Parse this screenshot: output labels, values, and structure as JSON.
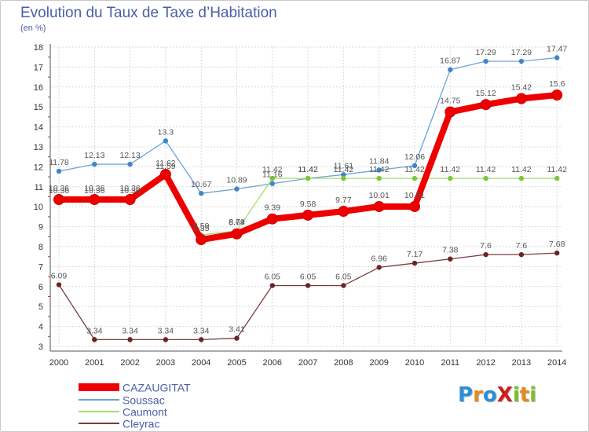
{
  "title": "Evolution du Taux de Taxe d’Habitation",
  "subtitle": "(en %)",
  "logo": {
    "text": "ProXiti",
    "letters": [
      {
        "ch": "P",
        "color": "#2c8fd6"
      },
      {
        "ch": "r",
        "color": "#e58a1f"
      },
      {
        "ch": "o",
        "color": "#2c8fd6"
      },
      {
        "ch": "X",
        "color": "#d11d1d"
      },
      {
        "ch": "i",
        "color": "#7cbf2a"
      },
      {
        "ch": "t",
        "color": "#e58a1f"
      },
      {
        "ch": "i",
        "color": "#7cbf2a"
      }
    ]
  },
  "chart_data": {
    "type": "line",
    "title": "Evolution du Taux de Taxe d’Habitation",
    "ylabel": "(en %)",
    "xlabel": "",
    "ylim": [
      3,
      18
    ],
    "yticks": [
      3,
      4,
      5,
      6,
      7,
      8,
      9,
      10,
      11,
      12,
      13,
      14,
      15,
      16,
      17,
      18
    ],
    "x": [
      "2000",
      "2001",
      "2002",
      "2003",
      "2004",
      "2005",
      "2006",
      "2007",
      "2008",
      "2009",
      "2010",
      "2011",
      "2012",
      "2013",
      "2014"
    ],
    "grid": "both",
    "legend_position": "bottom-left",
    "series": [
      {
        "name": "Soussac",
        "color": "#6aa3d6",
        "marker_color": "#3f86c9",
        "values": [
          11.78,
          12.13,
          12.13,
          13.3,
          10.67,
          10.89,
          11.16,
          11.42,
          11.61,
          11.84,
          12.06,
          16.87,
          17.29,
          17.29,
          17.47
        ],
        "labels": [
          "11.78",
          "12.13",
          "12.13",
          "13.3",
          "10.67",
          "10.89",
          "11.16",
          "11.42",
          "11.61",
          "11.84",
          "12.06",
          "16.87",
          "17.29",
          "17.29",
          "17.47"
        ]
      },
      {
        "name": "Caumont",
        "color": "#a6dd6a",
        "marker_color": "#7cc63a",
        "values": [
          10.36,
          10.36,
          10.36,
          11.59,
          8.59,
          8.79,
          11.42,
          11.42,
          11.42,
          11.42,
          11.42,
          11.42,
          11.42,
          11.42,
          11.42
        ],
        "labels": [
          "10.36",
          "10.36",
          "10.36",
          "11.59",
          "8.59",
          "8.79",
          "11.42",
          "11.42",
          "11.42",
          "11.42",
          "11.42",
          "11.42",
          "11.42",
          "11.42",
          "11.42"
        ]
      },
      {
        "name": "Cleyrac",
        "color": "#7a3b3b",
        "marker_color": "#6b2424",
        "values": [
          6.09,
          3.34,
          3.34,
          3.34,
          3.34,
          3.41,
          6.05,
          6.05,
          6.05,
          6.96,
          7.17,
          7.38,
          7.6,
          7.6,
          7.68
        ],
        "labels": [
          "6.09",
          "3.34",
          "3.34",
          "3.34",
          "3.34",
          "3.41",
          "6.05",
          "6.05",
          "6.05",
          "6.96",
          "7.17",
          "7.38",
          "7.6",
          "7.6",
          "7.68"
        ]
      },
      {
        "name": "CAZAUGITAT",
        "color": "#ee0000",
        "marker_color": "#ee0000",
        "values": [
          10.36,
          10.36,
          10.36,
          11.62,
          8.35,
          8.64,
          9.39,
          9.58,
          9.77,
          10.01,
          10.01,
          14.75,
          15.12,
          15.42,
          15.6
        ],
        "labels": [
          "10.36",
          "10.36",
          "10.36",
          "11.62",
          "8.35",
          "8.64",
          "9.39",
          "9.58",
          "9.77",
          "10.01",
          "10.01",
          "14.75",
          "15.12",
          "15.42",
          "15.6"
        ]
      }
    ],
    "legend": [
      "CAZAUGITAT",
      "Soussac",
      "Caumont",
      "Cleyrac"
    ]
  }
}
